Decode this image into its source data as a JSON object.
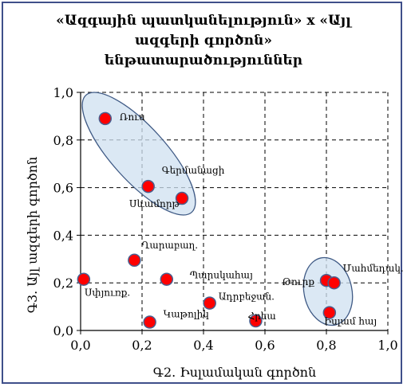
{
  "chart_data": {
    "type": "scatter",
    "title_lines": [
      "«Ազգային պատկանելություն» x «Այլ",
      "ազգերի գործոն»",
      "ենթատարածություններ"
    ],
    "xlabel": "Գ2. Իսլամական գործոն",
    "ylabel": "Գ3. Այլ ազգերի գործոն",
    "xlim": [
      0.0,
      1.0
    ],
    "ylim": [
      0.0,
      1.0
    ],
    "xticks": [
      "0,0",
      "0,2",
      "0,4",
      "0,6",
      "0,8",
      "1,0"
    ],
    "yticks": [
      "0,0",
      "0,2",
      "0,4",
      "0,6",
      "0,8",
      "1,0"
    ],
    "grid": "dashed",
    "marker_color": "#ff0000",
    "marker_edge_color": "#4a5f8f",
    "ellipse_color": "#3f5a85",
    "points": [
      {
        "label": "Ռուս",
        "x": 0.08,
        "y": 0.89
      },
      {
        "label": "Գերմանացի",
        "x": 0.22,
        "y": 0.605
      },
      {
        "label": "Սևամորթ",
        "x": 0.33,
        "y": 0.555
      },
      {
        "label": "Ղարաբաղ.",
        "x": 0.175,
        "y": 0.295
      },
      {
        "label": "Պարսկահայ",
        "x": 0.28,
        "y": 0.215
      },
      {
        "label": "Սփյուռք.",
        "x": 0.01,
        "y": 0.215
      },
      {
        "label": "Ադրբեջան.",
        "x": 0.42,
        "y": 0.115
      },
      {
        "label": "Կաթոլիկ",
        "x": 0.225,
        "y": 0.035
      },
      {
        "label": "Հրեա",
        "x": 0.57,
        "y": 0.04
      },
      {
        "label": "Թուրք",
        "x": 0.8,
        "y": 0.21
      },
      {
        "label": "Մահմեդակ.",
        "x": 0.825,
        "y": 0.2
      },
      {
        "label": "Իսլամ հայ",
        "x": 0.81,
        "y": 0.075
      }
    ]
  }
}
